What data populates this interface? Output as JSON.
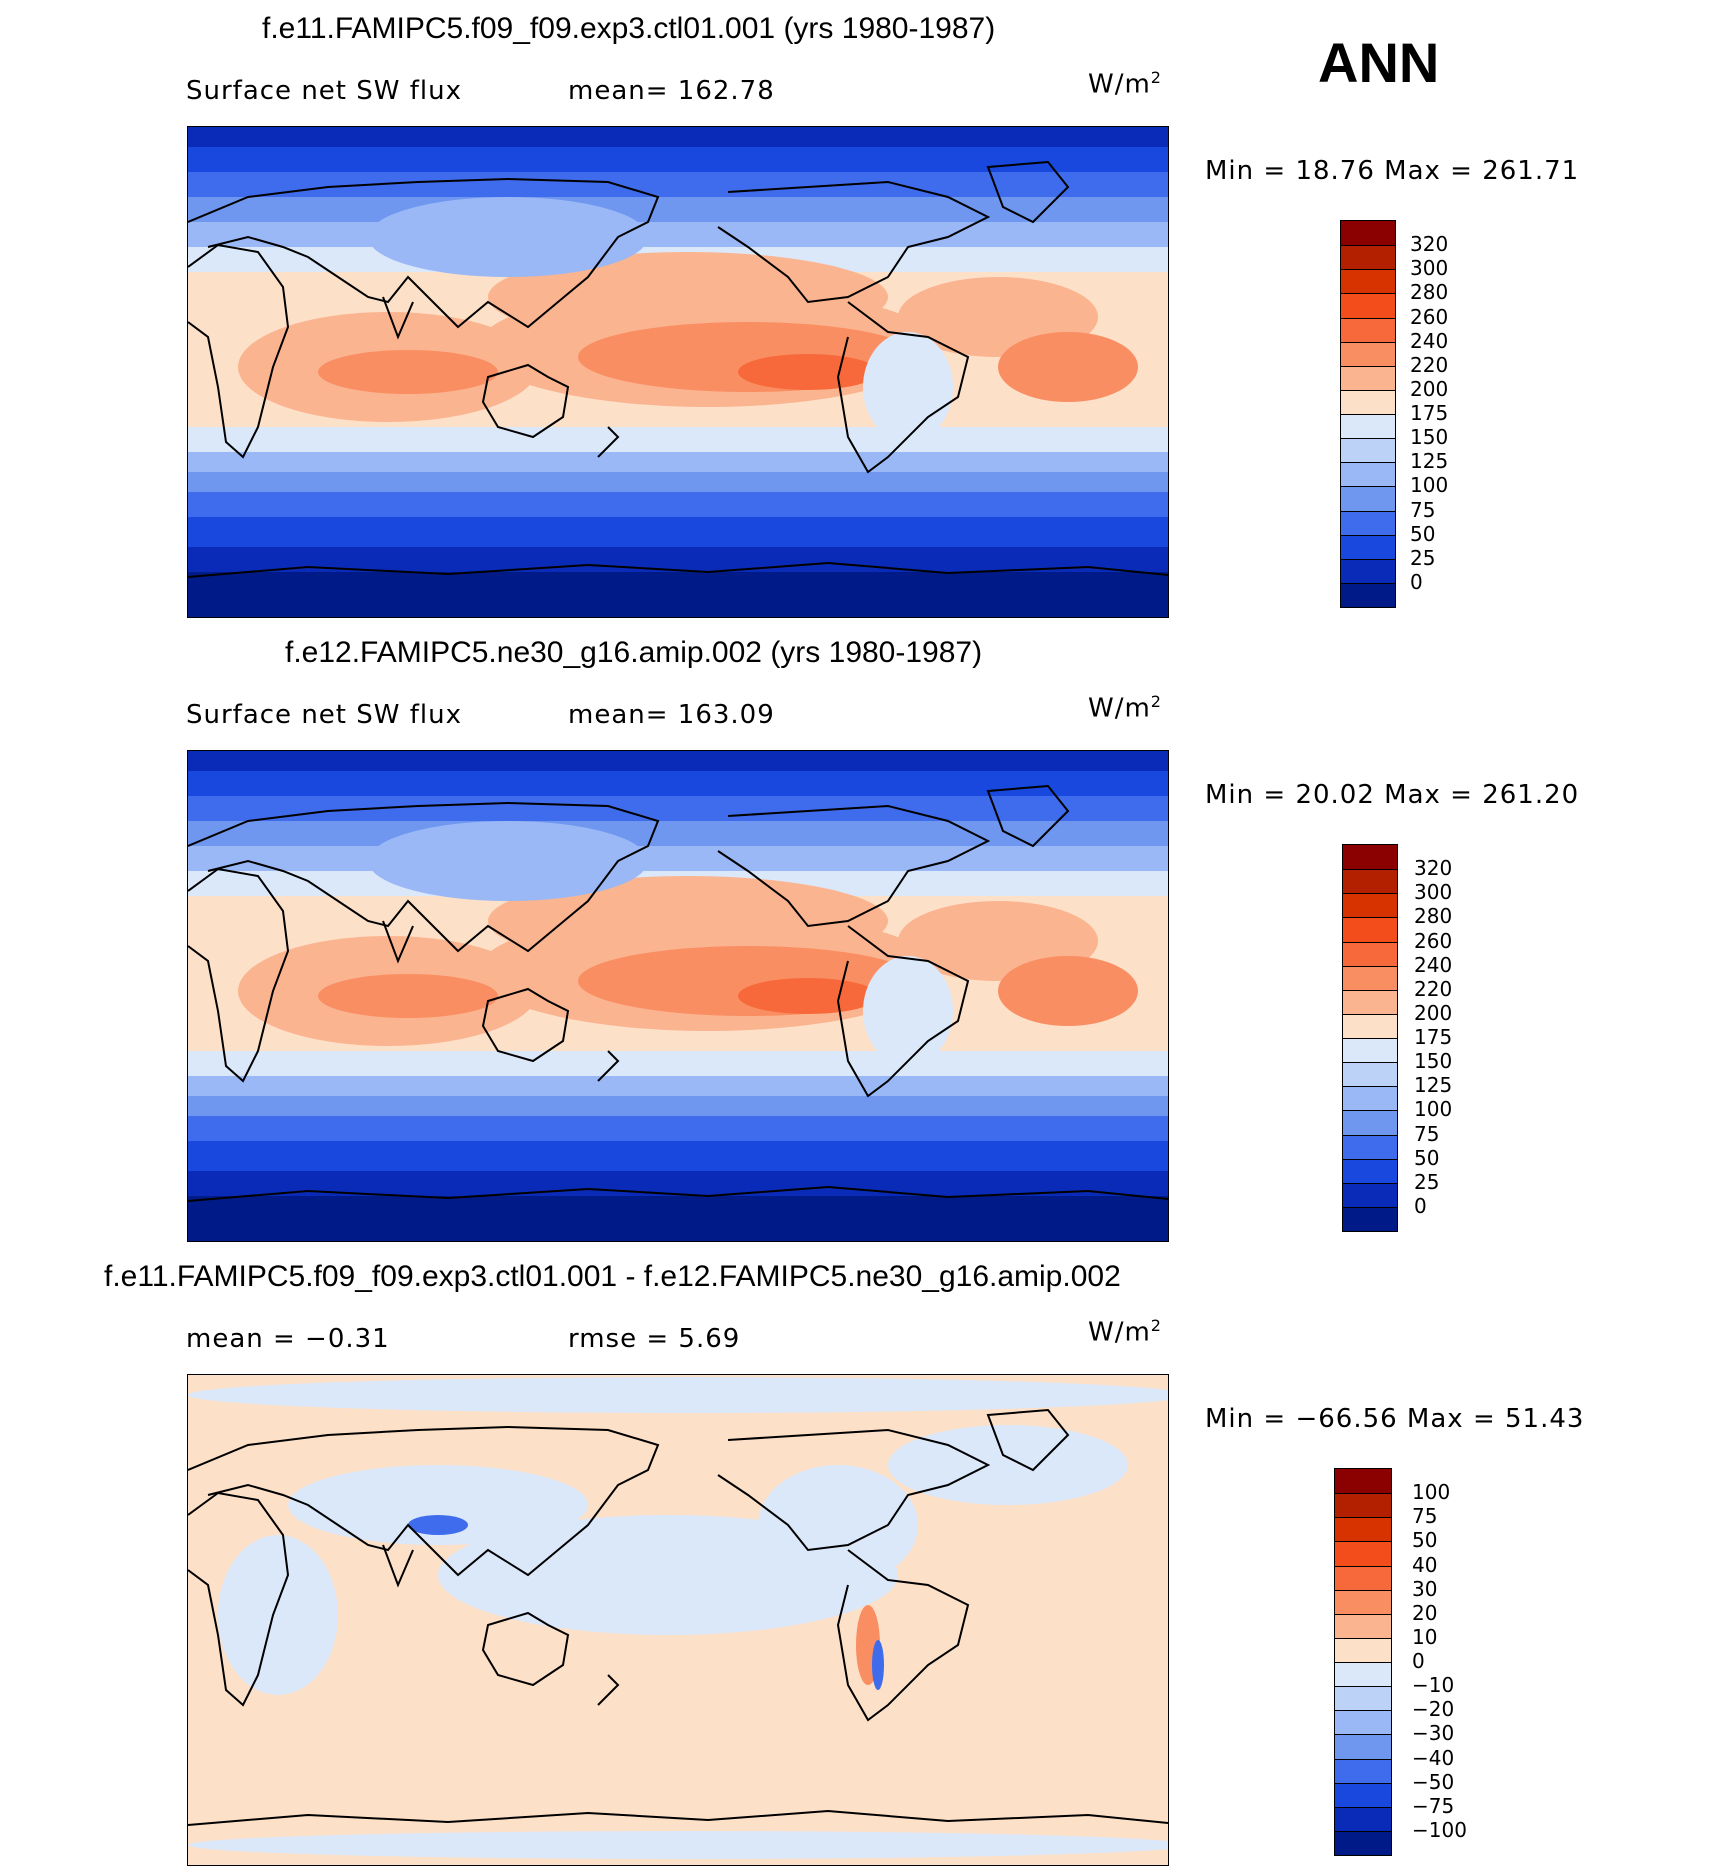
{
  "season": "ANN",
  "panels": [
    {
      "title": "f.e11.FAMIPC5.f09_f09.exp3.ctl01.001 (yrs 1980-1987)",
      "left_label": "Surface net SW flux",
      "center_label": "mean= 162.78",
      "units": "W/m",
      "units_sup": "2",
      "minmax": "Min =   18.76 Max = 261.71",
      "legend_levels": [
        "320",
        "300",
        "280",
        "260",
        "240",
        "220",
        "200",
        "175",
        "150",
        "125",
        "100",
        "75",
        "50",
        "25",
        "0"
      ],
      "legend_colors": [
        "#8b0000",
        "#b22000",
        "#d63300",
        "#f24d1a",
        "#f7693a",
        "#f98e63",
        "#fbb490",
        "#fde0c8",
        "#dbe8fa",
        "#bcd2f7",
        "#99b8f5",
        "#6f97f0",
        "#3f6cec",
        "#1848dd",
        "#0a2bb8",
        "#001b88"
      ],
      "palette_kind": "abs"
    },
    {
      "title": "f.e12.FAMIPC5.ne30_g16.amip.002 (yrs 1980-1987)",
      "left_label": "Surface net SW flux",
      "center_label": "mean= 163.09",
      "units": "W/m",
      "units_sup": "2",
      "minmax": "Min =   20.02 Max = 261.20",
      "legend_levels": [
        "320",
        "300",
        "280",
        "260",
        "240",
        "220",
        "200",
        "175",
        "150",
        "125",
        "100",
        "75",
        "50",
        "25",
        "0"
      ],
      "legend_colors": [
        "#8b0000",
        "#b22000",
        "#d63300",
        "#f24d1a",
        "#f7693a",
        "#f98e63",
        "#fbb490",
        "#fde0c8",
        "#dbe8fa",
        "#bcd2f7",
        "#99b8f5",
        "#6f97f0",
        "#3f6cec",
        "#1848dd",
        "#0a2bb8",
        "#001b88"
      ],
      "palette_kind": "abs"
    },
    {
      "title": "f.e11.FAMIPC5.f09_f09.exp3.ctl01.001 - f.e12.FAMIPC5.ne30_g16.amip.002",
      "left_label": "mean =   −0.31",
      "center_label": "rmse =    5.69",
      "units": "W/m",
      "units_sup": "2",
      "minmax": "Min = −66.56 Max =   51.43",
      "legend_levels": [
        "100",
        "75",
        "50",
        "40",
        "30",
        "20",
        "10",
        "0",
        "−10",
        "−20",
        "−30",
        "−40",
        "−50",
        "−75",
        "−100"
      ],
      "legend_colors": [
        "#8b0000",
        "#b22000",
        "#d63300",
        "#f24d1a",
        "#f7693a",
        "#f98e63",
        "#fbb490",
        "#fde0c8",
        "#dbe8fa",
        "#bcd2f7",
        "#99b8f5",
        "#6f97f0",
        "#3f6cec",
        "#1848dd",
        "#0a2bb8",
        "#001b88"
      ],
      "palette_kind": "diff"
    }
  ]
}
